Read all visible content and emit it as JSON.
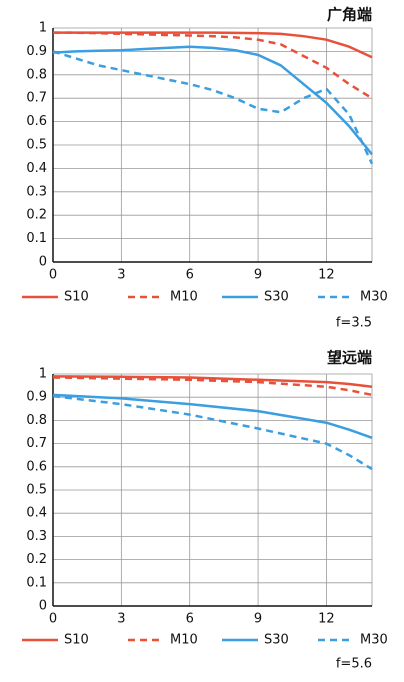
{
  "chart_data": [
    {
      "type": "line",
      "title": "广角端",
      "annotation": "f=3.5",
      "x": [
        0,
        1,
        2,
        3,
        4,
        5,
        6,
        7,
        8,
        9,
        10,
        11,
        12,
        13,
        14
      ],
      "xlim": [
        0,
        14
      ],
      "xticks": [
        0,
        3,
        6,
        9,
        12
      ],
      "ylim": [
        0,
        1
      ],
      "yticks": [
        0,
        0.1,
        0.2,
        0.3,
        0.4,
        0.5,
        0.6,
        0.7,
        0.8,
        0.9,
        1
      ],
      "grid": true,
      "series": [
        {
          "name": "S10",
          "color": "#e8503a",
          "dashed": false,
          "values": [
            0.98,
            0.98,
            0.98,
            0.98,
            0.98,
            0.98,
            0.98,
            0.98,
            0.979,
            0.978,
            0.975,
            0.965,
            0.95,
            0.92,
            0.875
          ]
        },
        {
          "name": "M10",
          "color": "#e8503a",
          "dashed": true,
          "values": [
            0.98,
            0.98,
            0.978,
            0.975,
            0.973,
            0.97,
            0.968,
            0.965,
            0.96,
            0.95,
            0.93,
            0.88,
            0.83,
            0.76,
            0.7
          ]
        },
        {
          "name": "S30",
          "color": "#3a9ee0",
          "dashed": false,
          "values": [
            0.895,
            0.9,
            0.903,
            0.905,
            0.91,
            0.915,
            0.92,
            0.915,
            0.905,
            0.885,
            0.84,
            0.76,
            0.68,
            0.58,
            0.46
          ]
        },
        {
          "name": "M30",
          "color": "#3a9ee0",
          "dashed": true,
          "values": [
            0.9,
            0.87,
            0.84,
            0.82,
            0.8,
            0.78,
            0.76,
            0.735,
            0.7,
            0.655,
            0.64,
            0.7,
            0.74,
            0.63,
            0.42
          ]
        }
      ]
    },
    {
      "type": "line",
      "title": "望远端",
      "annotation": "f=5.6",
      "x": [
        0,
        3,
        6,
        9,
        12,
        13,
        14
      ],
      "xlim": [
        0,
        14
      ],
      "xticks": [
        0,
        3,
        6,
        9,
        12
      ],
      "ylim": [
        0,
        1
      ],
      "yticks": [
        0,
        0.1,
        0.2,
        0.3,
        0.4,
        0.5,
        0.6,
        0.7,
        0.8,
        0.9,
        1
      ],
      "grid": true,
      "series": [
        {
          "name": "S10",
          "color": "#e8503a",
          "dashed": false,
          "values": [
            0.99,
            0.988,
            0.985,
            0.975,
            0.965,
            0.957,
            0.945
          ]
        },
        {
          "name": "M10",
          "color": "#e8503a",
          "dashed": true,
          "values": [
            0.985,
            0.98,
            0.975,
            0.965,
            0.945,
            0.93,
            0.91
          ]
        },
        {
          "name": "S30",
          "color": "#3a9ee0",
          "dashed": false,
          "values": [
            0.91,
            0.895,
            0.87,
            0.84,
            0.79,
            0.76,
            0.725
          ]
        },
        {
          "name": "M30",
          "color": "#3a9ee0",
          "dashed": true,
          "values": [
            0.905,
            0.87,
            0.825,
            0.765,
            0.7,
            0.65,
            0.59
          ]
        }
      ]
    }
  ]
}
